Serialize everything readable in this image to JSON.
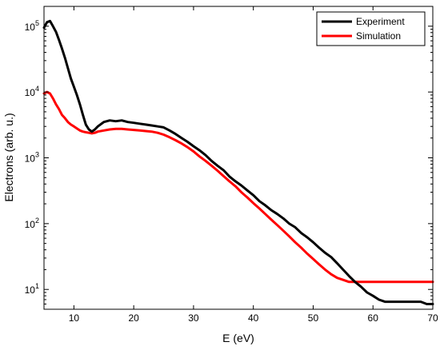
{
  "chart_data": {
    "type": "line",
    "title": "",
    "xlabel": "E (eV)",
    "ylabel": "Electrons (arb. u.)",
    "xlim": [
      5,
      70
    ],
    "ylim": [
      5,
      200000
    ],
    "yscale": "log",
    "grid": false,
    "legend_position": "top-right",
    "x_ticks": [
      10,
      20,
      30,
      40,
      50,
      60,
      70
    ],
    "y_ticks": [
      {
        "value": 10,
        "base": "10",
        "exp": "1"
      },
      {
        "value": 100,
        "base": "10",
        "exp": "2"
      },
      {
        "value": 1000,
        "base": "10",
        "exp": "3"
      },
      {
        "value": 10000,
        "base": "10",
        "exp": "4"
      },
      {
        "value": 100000,
        "base": "10",
        "exp": "5"
      }
    ],
    "series": [
      {
        "name": "Experiment",
        "color": "#000000",
        "x": [
          5.0,
          5.5,
          6.0,
          6.5,
          7.0,
          7.5,
          8.0,
          8.5,
          9.0,
          9.5,
          10.0,
          10.5,
          11.0,
          11.5,
          12.0,
          12.5,
          13.0,
          13.5,
          14.0,
          15.0,
          16.0,
          17.0,
          18.0,
          19.0,
          20.0,
          21.0,
          22.0,
          23.0,
          24.0,
          25.0,
          26.0,
          27.0,
          28.0,
          29.0,
          30.0,
          31.0,
          32.0,
          33.0,
          34.0,
          35.0,
          36.0,
          37.0,
          38.0,
          39.0,
          40.0,
          41.0,
          42.0,
          43.0,
          44.0,
          45.0,
          46.0,
          47.0,
          48.0,
          49.0,
          50.0,
          51.0,
          52.0,
          53.0,
          54.0,
          55.0,
          56.0,
          57.0,
          58.0,
          59.0,
          60.0,
          61.0,
          62.0,
          63.0,
          64.0,
          65.0,
          66.0,
          67.0,
          68.0,
          69.0,
          70.0
        ],
        "y": [
          95000,
          115000,
          120000,
          100000,
          82000,
          62000,
          46000,
          33000,
          23000,
          16000,
          12000,
          9000,
          6500,
          4500,
          3200,
          2700,
          2500,
          2700,
          3000,
          3500,
          3700,
          3600,
          3700,
          3500,
          3400,
          3300,
          3200,
          3100,
          3000,
          2900,
          2600,
          2300,
          2000,
          1750,
          1500,
          1300,
          1100,
          900,
          760,
          650,
          520,
          440,
          380,
          320,
          270,
          220,
          190,
          160,
          140,
          120,
          100,
          88,
          72,
          62,
          52,
          43,
          36,
          31,
          25,
          20,
          16,
          13,
          11,
          9,
          8,
          7,
          6.5,
          6.5,
          6.5,
          6.5,
          6.5,
          6.5,
          6.5,
          6,
          6
        ]
      },
      {
        "name": "Simulation",
        "color": "#ff0000",
        "x": [
          5.0,
          5.5,
          6.0,
          6.5,
          7.0,
          7.5,
          8.0,
          8.5,
          9.0,
          9.5,
          10.0,
          10.5,
          11.0,
          11.5,
          12.0,
          12.5,
          13.0,
          13.5,
          14.0,
          15.0,
          16.0,
          17.0,
          18.0,
          19.0,
          20.0,
          21.0,
          22.0,
          23.0,
          24.0,
          25.0,
          26.0,
          27.0,
          28.0,
          29.0,
          30.0,
          31.0,
          32.0,
          33.0,
          34.0,
          35.0,
          36.0,
          37.0,
          38.0,
          39.0,
          40.0,
          41.0,
          42.0,
          43.0,
          44.0,
          45.0,
          46.0,
          47.0,
          48.0,
          49.0,
          50.0,
          51.0,
          52.0,
          53.0,
          54.0,
          55.0,
          56.0,
          57.0,
          58.0,
          59.0,
          60.0,
          61.0,
          62.0,
          63.0,
          64.0,
          65.0,
          66.0,
          67.0,
          68.0,
          69.0,
          70.0
        ],
        "y": [
          9500,
          10000,
          9500,
          8000,
          6500,
          5500,
          4500,
          4000,
          3500,
          3200,
          3000,
          2800,
          2600,
          2500,
          2450,
          2400,
          2350,
          2400,
          2500,
          2600,
          2700,
          2750,
          2750,
          2700,
          2650,
          2600,
          2550,
          2500,
          2400,
          2250,
          2050,
          1850,
          1650,
          1450,
          1250,
          1050,
          900,
          760,
          640,
          530,
          440,
          370,
          300,
          250,
          205,
          170,
          140,
          115,
          95,
          78,
          64,
          52,
          43,
          35,
          29,
          24,
          20,
          17,
          15,
          14,
          13,
          13,
          13,
          13,
          13,
          13,
          13,
          13,
          13,
          13,
          13,
          13,
          13,
          13,
          13
        ]
      }
    ]
  }
}
